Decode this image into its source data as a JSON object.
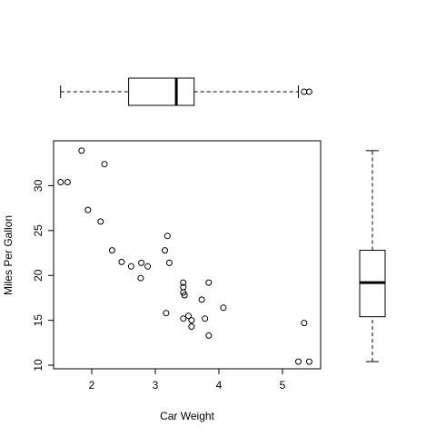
{
  "chart_data": [
    {
      "type": "scatter",
      "title": "",
      "xlabel": "Car Weight",
      "ylabel": "Miles Per Gallon",
      "xlim": [
        1.4,
        5.6
      ],
      "ylim": [
        9.6,
        35.0
      ],
      "xticks": [
        2,
        3,
        4,
        5
      ],
      "yticks": [
        10,
        15,
        20,
        25,
        30
      ],
      "grid": false,
      "points": [
        [
          1.51,
          30.4
        ],
        [
          1.62,
          30.4
        ],
        [
          1.84,
          33.9
        ],
        [
          1.94,
          27.3
        ],
        [
          2.14,
          26.0
        ],
        [
          2.2,
          32.4
        ],
        [
          2.32,
          22.8
        ],
        [
          2.47,
          21.5
        ],
        [
          2.62,
          21.0
        ],
        [
          2.78,
          21.4
        ],
        [
          2.77,
          19.7
        ],
        [
          2.88,
          21.0
        ],
        [
          3.15,
          22.8
        ],
        [
          3.17,
          15.8
        ],
        [
          3.19,
          24.4
        ],
        [
          3.22,
          21.4
        ],
        [
          3.44,
          18.1
        ],
        [
          3.44,
          15.2
        ],
        [
          3.44,
          19.2
        ],
        [
          3.46,
          17.8
        ],
        [
          3.44,
          18.7
        ],
        [
          3.52,
          15.5
        ],
        [
          3.57,
          15.0
        ],
        [
          3.57,
          14.3
        ],
        [
          3.73,
          17.3
        ],
        [
          3.78,
          15.2
        ],
        [
          3.84,
          19.2
        ],
        [
          3.84,
          13.3
        ],
        [
          4.07,
          16.4
        ],
        [
          5.25,
          10.4
        ],
        [
          5.34,
          14.7
        ],
        [
          5.42,
          10.4
        ]
      ]
    },
    {
      "type": "boxplot",
      "orientation": "horizontal",
      "variable": "Car Weight",
      "whisker_low": 1.51,
      "q1": 2.58,
      "median": 3.33,
      "q3": 3.61,
      "whisker_high": 5.25,
      "outliers": [
        5.34,
        5.42
      ]
    },
    {
      "type": "boxplot",
      "orientation": "vertical",
      "variable": "Miles Per Gallon",
      "whisker_low": 10.4,
      "q1": 15.4,
      "median": 19.2,
      "q3": 22.8,
      "whisker_high": 33.9,
      "outliers": []
    }
  ]
}
